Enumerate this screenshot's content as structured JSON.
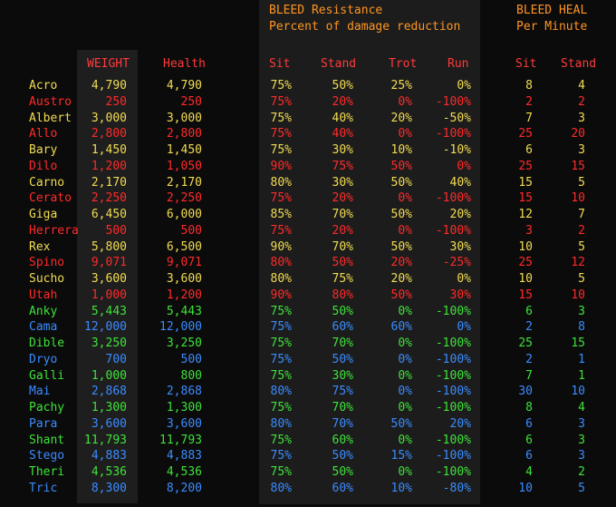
{
  "titles": {
    "resistance_line1": "BLEED Resistance",
    "resistance_line2": "Percent of damage reduction",
    "heal_line1": "BLEED HEAL",
    "heal_line2": "Per Minute"
  },
  "headers": {
    "weight": "WEIGHT",
    "health": "Health",
    "sit": "Sit",
    "stand": "Stand",
    "trot": "Trot",
    "run": "Run",
    "heal_sit": "Sit",
    "heal_stand": "Stand"
  },
  "colors": {
    "yellow": "#f2dc52",
    "red": "#ff2a2a",
    "green": "#3fe23a",
    "blue": "#3a8cff",
    "title_orange": "#ff9522"
  },
  "rows": [
    {
      "name": "Acro",
      "weight": "4,790",
      "health": "4,790",
      "sit": "75%",
      "stand": "50%",
      "trot": "25%",
      "run": "0%",
      "hsit": "8",
      "hstand": "4",
      "color": "yellow"
    },
    {
      "name": "Austro",
      "weight": "250",
      "health": "250",
      "sit": "75%",
      "stand": "20%",
      "trot": "0%",
      "run": "-100%",
      "hsit": "2",
      "hstand": "2",
      "color": "red"
    },
    {
      "name": "Albert",
      "weight": "3,000",
      "health": "3,000",
      "sit": "75%",
      "stand": "40%",
      "trot": "20%",
      "run": "-50%",
      "hsit": "7",
      "hstand": "3",
      "color": "yellow"
    },
    {
      "name": "Allo",
      "weight": "2,800",
      "health": "2,800",
      "sit": "75%",
      "stand": "40%",
      "trot": "0%",
      "run": "-100%",
      "hsit": "25",
      "hstand": "20",
      "color": "red"
    },
    {
      "name": "Bary",
      "weight": "1,450",
      "health": "1,450",
      "sit": "75%",
      "stand": "30%",
      "trot": "10%",
      "run": "-10%",
      "hsit": "6",
      "hstand": "3",
      "color": "yellow"
    },
    {
      "name": "Dilo",
      "weight": "1,200",
      "health": "1,050",
      "sit": "90%",
      "stand": "75%",
      "trot": "50%",
      "run": "0%",
      "hsit": "25",
      "hstand": "15",
      "color": "red"
    },
    {
      "name": "Carno",
      "weight": "2,170",
      "health": "2,170",
      "sit": "80%",
      "stand": "30%",
      "trot": "50%",
      "run": "40%",
      "hsit": "15",
      "hstand": "5",
      "color": "yellow"
    },
    {
      "name": "Cerato",
      "weight": "2,250",
      "health": "2,250",
      "sit": "75%",
      "stand": "20%",
      "trot": "0%",
      "run": "-100%",
      "hsit": "15",
      "hstand": "10",
      "color": "red"
    },
    {
      "name": "Giga",
      "weight": "6,450",
      "health": "6,000",
      "sit": "85%",
      "stand": "70%",
      "trot": "50%",
      "run": "20%",
      "hsit": "12",
      "hstand": "7",
      "color": "yellow"
    },
    {
      "name": "Herrera",
      "weight": "500",
      "health": "500",
      "sit": "75%",
      "stand": "20%",
      "trot": "0%",
      "run": "-100%",
      "hsit": "3",
      "hstand": "2",
      "color": "red"
    },
    {
      "name": "Rex",
      "weight": "5,800",
      "health": "6,500",
      "sit": "90%",
      "stand": "70%",
      "trot": "50%",
      "run": "30%",
      "hsit": "10",
      "hstand": "5",
      "color": "yellow"
    },
    {
      "name": "Spino",
      "weight": "9,071",
      "health": "9,071",
      "sit": "80%",
      "stand": "50%",
      "trot": "20%",
      "run": "-25%",
      "hsit": "25",
      "hstand": "12",
      "color": "red"
    },
    {
      "name": "Sucho",
      "weight": "3,600",
      "health": "3,600",
      "sit": "80%",
      "stand": "75%",
      "trot": "20%",
      "run": "0%",
      "hsit": "10",
      "hstand": "5",
      "color": "yellow"
    },
    {
      "name": "Utah",
      "weight": "1,000",
      "health": "1,200",
      "sit": "90%",
      "stand": "80%",
      "trot": "50%",
      "run": "30%",
      "hsit": "15",
      "hstand": "10",
      "color": "red"
    },
    {
      "name": "Anky",
      "weight": "5,443",
      "health": "5,443",
      "sit": "75%",
      "stand": "50%",
      "trot": "0%",
      "run": "-100%",
      "hsit": "6",
      "hstand": "3",
      "color": "green"
    },
    {
      "name": "Cama",
      "weight": "12,000",
      "health": "12,000",
      "sit": "75%",
      "stand": "60%",
      "trot": "60%",
      "run": "0%",
      "hsit": "2",
      "hstand": "8",
      "color": "blue"
    },
    {
      "name": "Dible",
      "weight": "3,250",
      "health": "3,250",
      "sit": "75%",
      "stand": "70%",
      "trot": "0%",
      "run": "-100%",
      "hsit": "25",
      "hstand": "15",
      "color": "green"
    },
    {
      "name": "Dryo",
      "weight": "700",
      "health": "500",
      "sit": "75%",
      "stand": "50%",
      "trot": "0%",
      "run": "-100%",
      "hsit": "2",
      "hstand": "1",
      "color": "blue"
    },
    {
      "name": "Galli",
      "weight": "1,000",
      "health": "800",
      "sit": "75%",
      "stand": "30%",
      "trot": "0%",
      "run": "-100%",
      "hsit": "7",
      "hstand": "1",
      "color": "green"
    },
    {
      "name": "Mai",
      "weight": "2,868",
      "health": "2,868",
      "sit": "80%",
      "stand": "75%",
      "trot": "0%",
      "run": "-100%",
      "hsit": "30",
      "hstand": "10",
      "color": "blue"
    },
    {
      "name": "Pachy",
      "weight": "1,300",
      "health": "1,300",
      "sit": "75%",
      "stand": "70%",
      "trot": "0%",
      "run": "-100%",
      "hsit": "8",
      "hstand": "4",
      "color": "green"
    },
    {
      "name": "Para",
      "weight": "3,600",
      "health": "3,600",
      "sit": "80%",
      "stand": "70%",
      "trot": "50%",
      "run": "20%",
      "hsit": "6",
      "hstand": "3",
      "color": "blue"
    },
    {
      "name": "Shant",
      "weight": "11,793",
      "health": "11,793",
      "sit": "75%",
      "stand": "60%",
      "trot": "0%",
      "run": "-100%",
      "hsit": "6",
      "hstand": "3",
      "color": "green"
    },
    {
      "name": "Stego",
      "weight": "4,883",
      "health": "4,883",
      "sit": "75%",
      "stand": "50%",
      "trot": "15%",
      "run": "-100%",
      "hsit": "6",
      "hstand": "3",
      "color": "blue"
    },
    {
      "name": "Theri",
      "weight": "4,536",
      "health": "4,536",
      "sit": "75%",
      "stand": "50%",
      "trot": "0%",
      "run": "-100%",
      "hsit": "4",
      "hstand": "2",
      "color": "green"
    },
    {
      "name": "Tric",
      "weight": "8,300",
      "health": "8,200",
      "sit": "80%",
      "stand": "60%",
      "trot": "10%",
      "run": "-80%",
      "hsit": "10",
      "hstand": "5",
      "color": "blue"
    }
  ]
}
